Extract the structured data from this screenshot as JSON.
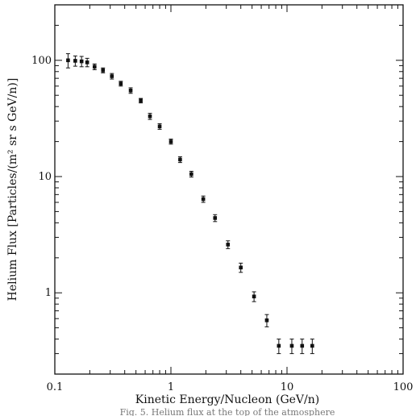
{
  "chart_data": {
    "type": "scatter",
    "xlabel": "Kinetic Energy/Nucleon (GeV/n)",
    "ylabel": "Helium Flux [Particles/(m² sr s GeV/n)]",
    "xscale": "log",
    "yscale": "log",
    "xlim": [
      0.1,
      100
    ],
    "ylim": [
      0.2,
      300
    ],
    "x_tick_labels": [
      {
        "value": 0.1,
        "label": "0.1"
      },
      {
        "value": 1,
        "label": "1"
      },
      {
        "value": 10,
        "label": "10"
      },
      {
        "value": 100,
        "label": "100"
      }
    ],
    "y_tick_labels": [
      {
        "value": 1,
        "label": "1"
      },
      {
        "value": 10,
        "label": "10"
      },
      {
        "value": 100,
        "label": "100"
      }
    ],
    "grid": false,
    "series": [
      {
        "x": [
          0.13,
          0.15,
          0.17,
          0.19,
          0.22,
          0.26,
          0.31,
          0.37,
          0.45,
          0.55,
          0.66,
          0.8,
          1.0,
          1.2,
          1.5,
          1.9,
          2.4,
          3.1,
          4.0,
          5.2,
          6.7,
          8.5,
          11.0,
          13.5,
          16.5
        ],
        "y": [
          100,
          99,
          98,
          96,
          88,
          82,
          73,
          63,
          55,
          45,
          33,
          27,
          20,
          14,
          10.5,
          6.4,
          4.4,
          2.6,
          1.65,
          0.93,
          0.58,
          0.35,
          0.35,
          0.35,
          0.35
        ],
        "y_err": [
          14,
          10,
          10,
          8,
          5,
          4,
          4,
          3,
          3,
          2,
          2,
          1.5,
          1,
          0.8,
          0.6,
          0.4,
          0.3,
          0.2,
          0.15,
          0.09,
          0.07,
          0.05,
          0.05,
          0.05,
          0.05
        ]
      }
    ]
  },
  "caption_fragment": "Fig. 5. Helium flux at the top of the atmosphere"
}
